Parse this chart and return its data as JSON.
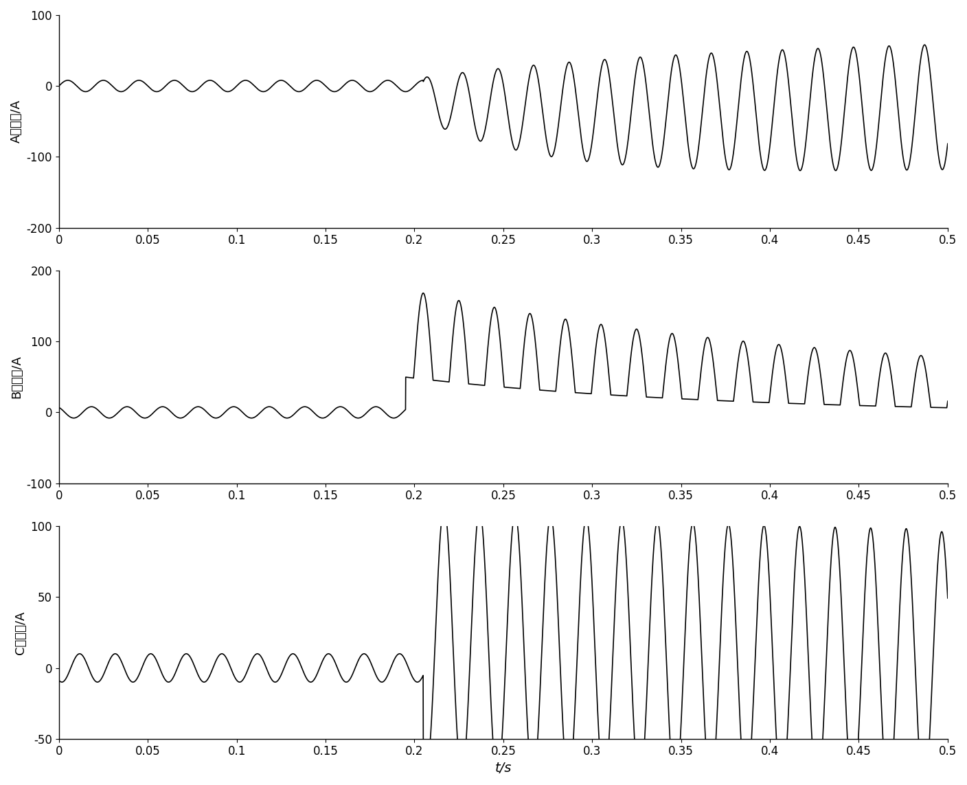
{
  "xlabel": "t/s",
  "subplots": [
    {
      "ylabel": "A相差流/A",
      "ylim": [
        -200,
        100
      ],
      "yticks": [
        -200,
        -100,
        0,
        100
      ]
    },
    {
      "ylabel": "B相差流/A",
      "ylim": [
        -100,
        200
      ],
      "yticks": [
        -100,
        0,
        100,
        200
      ]
    },
    {
      "ylabel": "C相差流/A",
      "ylim": [
        -50,
        100
      ],
      "yticks": [
        -50,
        0,
        50,
        100
      ]
    }
  ],
  "xlim": [
    0,
    0.5
  ],
  "xticks": [
    0,
    0.05,
    0.1,
    0.15,
    0.2,
    0.25,
    0.3,
    0.35,
    0.4,
    0.45,
    0.5
  ],
  "line_color": "#000000",
  "line_width": 1.2,
  "bg_color": "#ffffff",
  "font_size_ticks": 12,
  "font_size_label": 13,
  "font_size_xlabel": 14
}
